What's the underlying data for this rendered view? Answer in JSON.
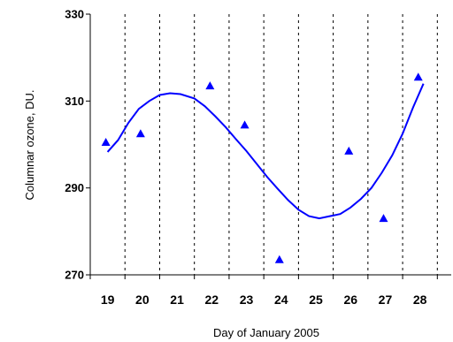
{
  "chart_data": {
    "type": "scatter",
    "title": "",
    "xlabel": "Day of January 2005",
    "ylabel": "Columnar ozone, DU.",
    "categories": [
      "19",
      "20",
      "21",
      "22",
      "23",
      "24",
      "25",
      "26",
      "27",
      "28"
    ],
    "xlim": [
      18.5,
      28.9
    ],
    "ylim": [
      270,
      330
    ],
    "y_ticks": [
      "270",
      "290",
      "310",
      "330"
    ],
    "grid": "vertical dashed",
    "legend": "none",
    "series": [
      {
        "type": "scatter",
        "marker": "triangle",
        "color": "#0000ff",
        "x": [
          19.0,
          20.0,
          21.0,
          22.0,
          23.0,
          24.0,
          25.0,
          26.0,
          27.0,
          28.0
        ],
        "y": [
          300.5,
          302.5,
          313.5,
          304.5,
          273.5,
          298.5,
          283.0,
          315.5,
          null,
          null
        ]
      },
      {
        "type": "line",
        "color": "#0000ff",
        "x": [
          19.0,
          19.3,
          19.6,
          19.9,
          20.2,
          20.5,
          20.8,
          21.1,
          21.5,
          21.8,
          22.1,
          22.4,
          22.7,
          23.0,
          23.3,
          23.6,
          23.9,
          24.2,
          24.5,
          24.8,
          25.1,
          25.4,
          25.7,
          26.0,
          26.3,
          26.6,
          26.9,
          27.2,
          27.5,
          27.8,
          28.1
        ],
        "y": [
          298.3,
          301.0,
          305.0,
          308.2,
          310.0,
          311.4,
          311.8,
          311.6,
          310.6,
          308.8,
          306.5,
          304.0,
          301.2,
          298.5,
          295.5,
          292.5,
          289.8,
          287.2,
          285.0,
          283.5,
          283.0,
          283.5,
          284.0,
          285.5,
          287.5,
          290.0,
          293.5,
          297.5,
          302.5,
          308.5,
          314.0
        ]
      }
    ]
  }
}
